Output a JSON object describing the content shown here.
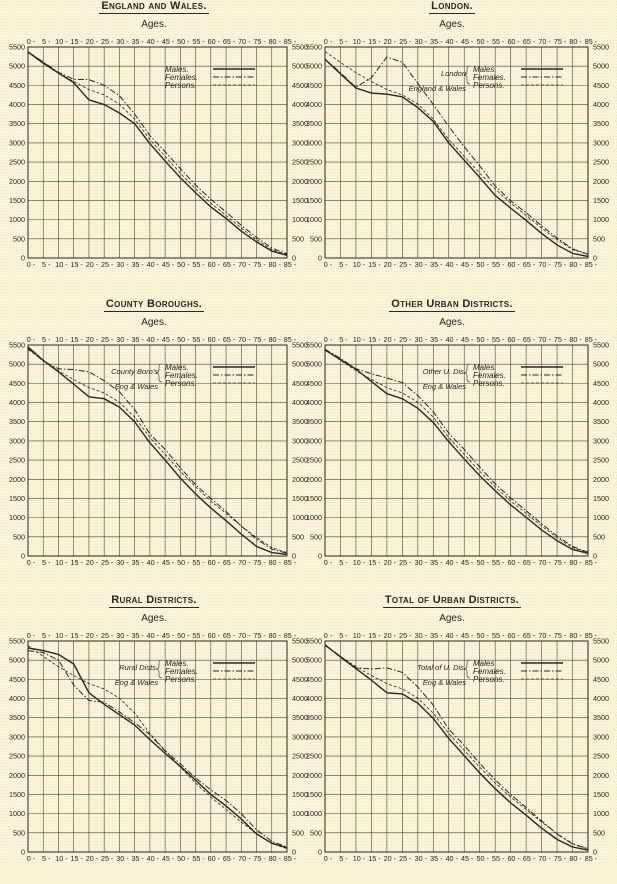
{
  "page": {
    "background": "#fbf3d8",
    "ink": "#2a2620",
    "ages_label": "Ages."
  },
  "chart_data": [
    {
      "id": "england-wales",
      "type": "line",
      "title": "England and Wales.",
      "xlabel": "Ages.",
      "ylabel": "",
      "x": [
        0,
        5,
        10,
        15,
        20,
        25,
        30,
        35,
        40,
        45,
        50,
        55,
        60,
        65,
        70,
        75,
        80,
        85
      ],
      "x_tick_labels": [
        "0",
        "5",
        "10",
        "15",
        "20",
        "25",
        "30",
        "35",
        "40",
        "45",
        "50",
        "55",
        "60",
        "65",
        "70",
        "75",
        "80",
        "85"
      ],
      "y_ticks": [
        0,
        500,
        1000,
        1500,
        2000,
        2500,
        3000,
        3500,
        4000,
        4500,
        5000,
        5500
      ],
      "ylim": [
        0,
        5500
      ],
      "grid": true,
      "legend": [
        {
          "label": "Males.",
          "style": "solid"
        },
        {
          "label": "Females.",
          "style": "dashdot"
        },
        {
          "label": "Persons.",
          "style": "dashed"
        }
      ],
      "legend_group": [],
      "series": [
        {
          "name": "Males",
          "style": "solid",
          "values": [
            5370,
            5080,
            4820,
            4570,
            4120,
            4000,
            3780,
            3500,
            2980,
            2530,
            2090,
            1700,
            1330,
            1030,
            700,
            420,
            180,
            70
          ]
        },
        {
          "name": "Females",
          "style": "dashdot",
          "values": [
            5370,
            5110,
            4840,
            4660,
            4650,
            4500,
            4230,
            3750,
            3190,
            2770,
            2330,
            1900,
            1530,
            1200,
            850,
            540,
            260,
            110
          ]
        },
        {
          "name": "Persons",
          "style": "dashed",
          "values": [
            5380,
            5100,
            4830,
            4600,
            4390,
            4250,
            4010,
            3620,
            3090,
            2650,
            2210,
            1800,
            1430,
            1110,
            780,
            480,
            220,
            90
          ]
        }
      ]
    },
    {
      "id": "london",
      "type": "line",
      "title": "London.",
      "xlabel": "Ages.",
      "ylabel": "",
      "x": [
        0,
        5,
        10,
        15,
        20,
        25,
        30,
        35,
        40,
        45,
        50,
        55,
        60,
        65,
        70,
        75,
        80,
        85
      ],
      "x_tick_labels": [
        "0",
        "5",
        "10",
        "15",
        "20",
        "25",
        "30",
        "35",
        "40",
        "45",
        "50",
        "55",
        "60",
        "65",
        "70",
        "75",
        "80",
        "85"
      ],
      "y_ticks": [
        0,
        500,
        1000,
        1500,
        2000,
        2500,
        3000,
        3500,
        4000,
        4500,
        5000,
        5500
      ],
      "ylim": [
        0,
        5500
      ],
      "grid": true,
      "legend": [
        {
          "label": "Males.",
          "style": "solid"
        },
        {
          "label": "Females.",
          "style": "dashdot"
        },
        {
          "label": "Persons.",
          "style": "dashed"
        }
      ],
      "legend_group": [
        "London",
        "England & Wales"
      ],
      "series": [
        {
          "name": "London Males",
          "style": "solid",
          "values": [
            5180,
            4800,
            4430,
            4300,
            4270,
            4200,
            3920,
            3560,
            3000,
            2550,
            2100,
            1630,
            1300,
            980,
            640,
            340,
            120,
            40
          ]
        },
        {
          "name": "London Females",
          "style": "dashdot",
          "values": [
            5180,
            4830,
            4450,
            4700,
            5240,
            5100,
            4550,
            4000,
            3430,
            2900,
            2400,
            1880,
            1490,
            1180,
            840,
            520,
            240,
            100
          ]
        },
        {
          "name": "England & Wales Persons",
          "style": "dashed",
          "values": [
            5380,
            5100,
            4830,
            4600,
            4390,
            4250,
            4010,
            3620,
            3090,
            2650,
            2210,
            1800,
            1430,
            1110,
            780,
            480,
            220,
            90
          ]
        }
      ]
    },
    {
      "id": "county-boroughs",
      "type": "line",
      "title": "County Boroughs.",
      "xlabel": "Ages.",
      "ylabel": "",
      "x": [
        0,
        5,
        10,
        15,
        20,
        25,
        30,
        35,
        40,
        45,
        50,
        55,
        60,
        65,
        70,
        75,
        80,
        85
      ],
      "x_tick_labels": [
        "0",
        "5",
        "10",
        "15",
        "20",
        "25",
        "30",
        "35",
        "40",
        "45",
        "50",
        "55",
        "60",
        "65",
        "70",
        "75",
        "80",
        "85"
      ],
      "y_ticks": [
        0,
        500,
        1000,
        1500,
        2000,
        2500,
        3000,
        3500,
        4000,
        4500,
        5000,
        5500
      ],
      "ylim": [
        0,
        5500
      ],
      "grid": true,
      "legend": [
        {
          "label": "Males.",
          "style": "solid"
        },
        {
          "label": "Females.",
          "style": "dashdot"
        },
        {
          "label": "Persons.",
          "style": "dashed"
        }
      ],
      "legend_group": [
        "County Boro's",
        "Eng & Wales"
      ],
      "series": [
        {
          "name": "County Boro's Males",
          "style": "solid",
          "values": [
            5450,
            5100,
            4800,
            4480,
            4150,
            4100,
            3880,
            3500,
            2950,
            2500,
            2030,
            1620,
            1250,
            920,
            570,
            250,
            90,
            40
          ]
        },
        {
          "name": "County Boro's Females",
          "style": "dashdot",
          "values": [
            5420,
            5080,
            4880,
            4860,
            4800,
            4570,
            4280,
            3820,
            3180,
            2780,
            2300,
            1860,
            1500,
            1160,
            780,
            440,
            180,
            70
          ]
        },
        {
          "name": "Eng & Wales Persons",
          "style": "dashed",
          "values": [
            5380,
            5100,
            4830,
            4600,
            4390,
            4250,
            4010,
            3620,
            3090,
            2650,
            2210,
            1800,
            1430,
            1110,
            780,
            480,
            220,
            90
          ]
        }
      ]
    },
    {
      "id": "other-urban-districts",
      "type": "line",
      "title": "Other Urban Districts.",
      "xlabel": "Ages.",
      "ylabel": "",
      "x": [
        0,
        5,
        10,
        15,
        20,
        25,
        30,
        35,
        40,
        45,
        50,
        55,
        60,
        65,
        70,
        75,
        80,
        85
      ],
      "x_tick_labels": [
        "0",
        "5",
        "10",
        "15",
        "20",
        "25",
        "30",
        "35",
        "40",
        "45",
        "50",
        "55",
        "60",
        "65",
        "70",
        "75",
        "80",
        "85"
      ],
      "y_ticks": [
        0,
        500,
        1000,
        1500,
        2000,
        2500,
        3000,
        3500,
        4000,
        4500,
        5000,
        5500
      ],
      "ylim": [
        0,
        5500
      ],
      "grid": true,
      "legend": [
        {
          "label": "Males.",
          "style": "solid"
        },
        {
          "label": "Females.",
          "style": "dashdot"
        },
        {
          "label": "Persons.",
          "style": "dashed"
        }
      ],
      "legend_group": [
        "Other U. Dis.",
        "Eng & Wales"
      ],
      "series": [
        {
          "name": "Other U. Dis. Males",
          "style": "solid",
          "values": [
            5370,
            5120,
            4870,
            4550,
            4230,
            4100,
            3850,
            3480,
            2980,
            2530,
            2090,
            1700,
            1330,
            1010,
            680,
            400,
            170,
            70
          ]
        },
        {
          "name": "Other U. Dis. Females",
          "style": "dashdot",
          "values": [
            5390,
            5150,
            4880,
            4750,
            4640,
            4520,
            4180,
            3760,
            3200,
            2780,
            2320,
            1880,
            1510,
            1180,
            840,
            520,
            250,
            100
          ]
        },
        {
          "name": "Eng & Wales Persons",
          "style": "dashed",
          "values": [
            5380,
            5100,
            4830,
            4600,
            4390,
            4250,
            4010,
            3620,
            3090,
            2650,
            2210,
            1800,
            1430,
            1110,
            780,
            480,
            220,
            90
          ]
        }
      ]
    },
    {
      "id": "rural-districts",
      "type": "line",
      "title": "Rural Districts.",
      "xlabel": "Ages.",
      "ylabel": "",
      "x": [
        0,
        5,
        10,
        15,
        20,
        25,
        30,
        35,
        40,
        45,
        50,
        55,
        60,
        65,
        70,
        75,
        80,
        85
      ],
      "x_tick_labels": [
        "0",
        "5",
        "10",
        "15",
        "20",
        "25",
        "30",
        "35",
        "40",
        "45",
        "50",
        "55",
        "60",
        "65",
        "70",
        "75",
        "80",
        "85"
      ],
      "y_ticks": [
        0,
        500,
        1000,
        1500,
        2000,
        2500,
        3000,
        3500,
        4000,
        4500,
        5000,
        5500
      ],
      "ylim": [
        0,
        5500
      ],
      "grid": true,
      "legend": [
        {
          "label": "Males.",
          "style": "solid"
        },
        {
          "label": "Females.",
          "style": "dashdot"
        },
        {
          "label": "Persons.",
          "style": "dashed"
        }
      ],
      "legend_group": [
        "Rural Dists.",
        "Eng & Wales"
      ],
      "series": [
        {
          "name": "Rural Dists. Males",
          "style": "solid",
          "values": [
            5320,
            5250,
            5150,
            4900,
            4150,
            3850,
            3580,
            3310,
            2930,
            2570,
            2230,
            1870,
            1500,
            1200,
            860,
            470,
            230,
            110
          ]
        },
        {
          "name": "Rural Dists. Females",
          "style": "dashdot",
          "values": [
            5250,
            5200,
            5000,
            4350,
            3950,
            3900,
            3650,
            3370,
            3060,
            2630,
            2300,
            1930,
            1620,
            1340,
            1000,
            580,
            280,
            130
          ]
        },
        {
          "name": "Eng & Wales Persons",
          "style": "dashed",
          "values": [
            5380,
            5100,
            4830,
            4600,
            4390,
            4250,
            4010,
            3620,
            3090,
            2650,
            2210,
            1800,
            1430,
            1110,
            780,
            480,
            220,
            90
          ]
        }
      ]
    },
    {
      "id": "total-urban-districts",
      "type": "line",
      "title": "Total of Urban Districts.",
      "xlabel": "Ages.",
      "ylabel": "",
      "x": [
        0,
        5,
        10,
        15,
        20,
        25,
        30,
        35,
        40,
        45,
        50,
        55,
        60,
        65,
        70,
        75,
        80,
        85
      ],
      "x_tick_labels": [
        "0",
        "5",
        "10",
        "15",
        "20",
        "25",
        "30",
        "35",
        "40",
        "45",
        "50",
        "55",
        "60",
        "65",
        "70",
        "75",
        "80",
        "85"
      ],
      "y_ticks": [
        0,
        500,
        1000,
        1500,
        2000,
        2500,
        3000,
        3500,
        4000,
        4500,
        5000,
        5500
      ],
      "ylim": [
        0,
        5500
      ],
      "grid": true,
      "legend": [
        {
          "label": "Males",
          "style": "solid"
        },
        {
          "label": "Females.",
          "style": "dashdot"
        },
        {
          "label": "Persons.",
          "style": "dashed"
        }
      ],
      "legend_group": [
        "Total of U. Dis.",
        "Eng & Wales"
      ],
      "series": [
        {
          "name": "Total of U. Dis. Males",
          "style": "solid",
          "values": [
            5400,
            5080,
            4780,
            4480,
            4150,
            4120,
            3880,
            3480,
            2960,
            2510,
            2060,
            1650,
            1280,
            960,
            620,
            330,
            130,
            50
          ]
        },
        {
          "name": "Total of U. Dis. Females",
          "style": "dashdot",
          "values": [
            5400,
            5100,
            4800,
            4770,
            4800,
            4680,
            4300,
            3830,
            3200,
            2780,
            2310,
            1880,
            1500,
            1160,
            810,
            470,
            210,
            80
          ]
        },
        {
          "name": "Eng & Wales Persons",
          "style": "dashed",
          "values": [
            5380,
            5100,
            4830,
            4600,
            4390,
            4250,
            4010,
            3620,
            3090,
            2650,
            2210,
            1800,
            1430,
            1110,
            780,
            480,
            220,
            90
          ]
        }
      ]
    }
  ]
}
